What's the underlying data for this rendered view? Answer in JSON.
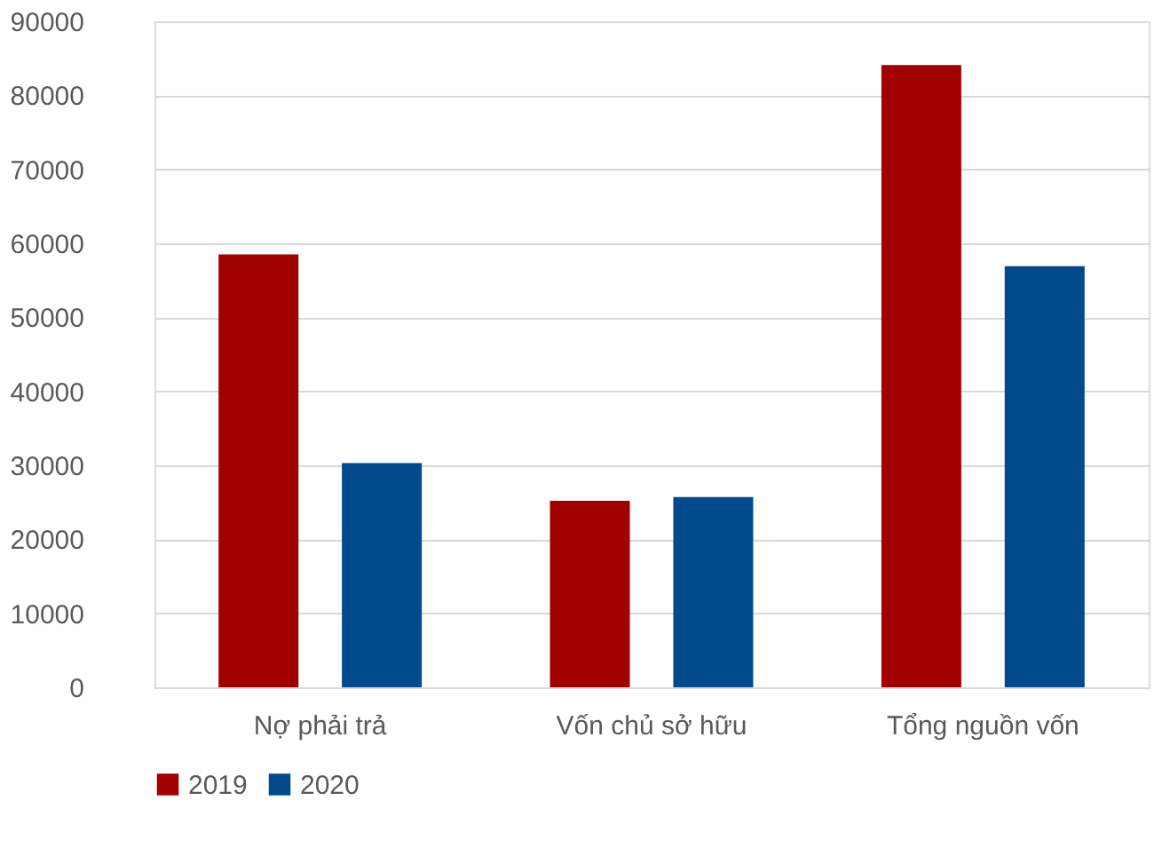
{
  "chart_data": {
    "type": "bar",
    "categories": [
      "Nợ phải trả",
      "Vốn chủ sở hữu",
      "Tổng nguồn vốn"
    ],
    "series": [
      {
        "name": "2019",
        "color": "#a00000",
        "values": [
          58500,
          25200,
          84100
        ]
      },
      {
        "name": "2020",
        "color": "#004a8b",
        "values": [
          30300,
          25700,
          56900
        ]
      }
    ],
    "ylim": [
      0,
      90000
    ],
    "yticks": [
      0,
      10000,
      20000,
      30000,
      40000,
      50000,
      60000,
      70000,
      80000,
      90000
    ],
    "grid": "y",
    "legend": "bottom"
  }
}
